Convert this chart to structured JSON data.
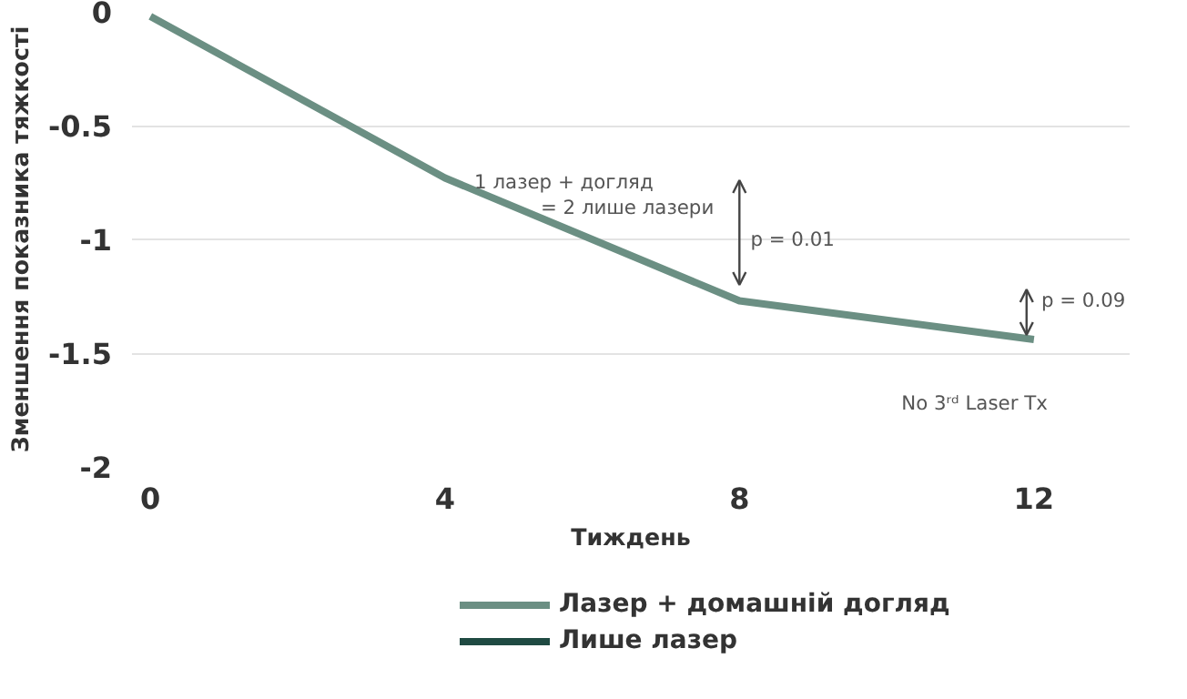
{
  "chart_data": {
    "type": "line",
    "ylabel": "Зменшення показника тяжкості",
    "xlabel": "Тиждень",
    "x": [
      0,
      4,
      8,
      12
    ],
    "series": [
      {
        "name": "Лазер + домашній догляд",
        "color": "#6b8f83",
        "values": [
          -0.02,
          -0.73,
          -1.27,
          -1.44
        ]
      },
      {
        "name": "Лише лазер",
        "color": "#1f4a42",
        "values": [
          null,
          null,
          null,
          null
        ]
      }
    ],
    "xlim": [
      -0.25,
      13.3
    ],
    "ylim": [
      -2,
      0
    ],
    "xticks": [
      0,
      4,
      8,
      12
    ],
    "yticks": [
      {
        "value": 0,
        "label": "0"
      },
      {
        "value": -0.5,
        "label": "-0.5"
      },
      {
        "value": -1,
        "label": "-1"
      },
      {
        "value": -1.5,
        "label": "-1.5"
      },
      {
        "value": -2,
        "label": "-2"
      }
    ],
    "grid": "y",
    "legend": "bottom",
    "line_style": "solid",
    "annotations": [
      "1 лазер + догляд\n= 2 лише лазери",
      "p = 0.01",
      "p = 0.09",
      "No 3ʳᵈ Laser Tx"
    ]
  }
}
